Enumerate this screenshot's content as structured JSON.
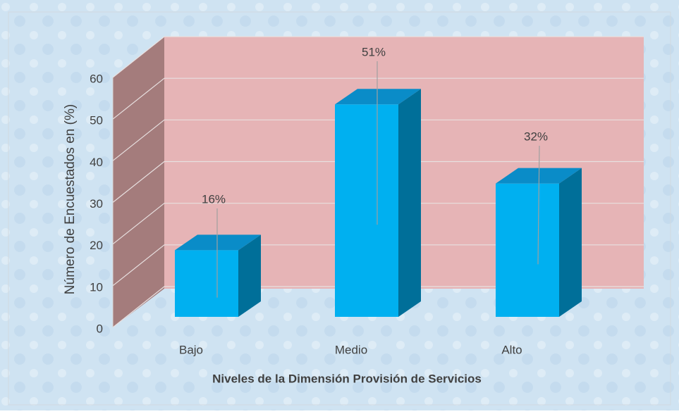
{
  "chart_data": {
    "type": "bar3d",
    "categories": [
      "Bajo",
      "Medio",
      "Alto"
    ],
    "values": [
      16,
      51,
      32
    ],
    "value_labels": [
      "16%",
      "51%",
      "32%"
    ],
    "color": "#00b0f0",
    "ylim": [
      0,
      60
    ],
    "yticks": [
      0,
      10,
      20,
      30,
      40,
      50,
      60
    ],
    "grid": true,
    "y_label": "Número de Encuestados en (%)",
    "x_label": "Niveles de la Dimensión Provisión de Servicios"
  }
}
